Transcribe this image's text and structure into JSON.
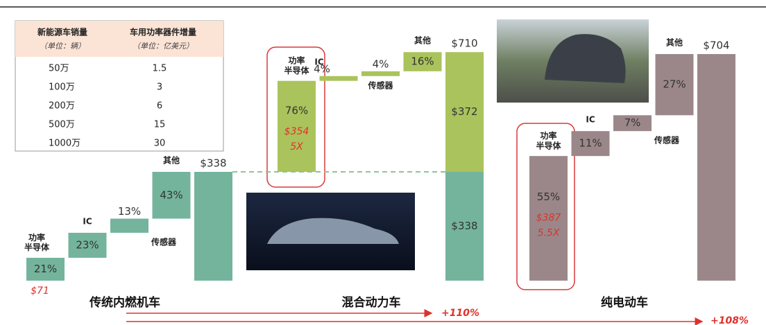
{
  "table": {
    "headers": [
      {
        "title": "新能源车销量",
        "unit": "（单位：辆）"
      },
      {
        "title": "车用功率器件增量",
        "unit": "（单位：亿美元）"
      }
    ],
    "rows": [
      [
        "50万",
        "1.5"
      ],
      [
        "100万",
        "3"
      ],
      [
        "200万",
        "6"
      ],
      [
        "500万",
        "15"
      ],
      [
        "1000万",
        "30"
      ]
    ]
  },
  "chart_data": {
    "type": "waterfall",
    "ylim": [
      0,
      760
    ],
    "groups": [
      {
        "name": "传统内燃机车",
        "color": "#74b49d",
        "categories": [
          "功率\n半导体",
          "IC",
          "传感器",
          "其他"
        ],
        "values": [
          21,
          23,
          13,
          43
        ],
        "value_labels": [
          "21%",
          "23%",
          "13%",
          "43%"
        ],
        "total": 338,
        "total_label": "$338",
        "highlight_label": "$71"
      },
      {
        "name": "混合动力车",
        "color": "#aac35c",
        "categories": [
          "功率\n半导体",
          "IC",
          "传感器",
          "其他"
        ],
        "values": [
          76,
          4,
          4,
          16
        ],
        "value_labels": [
          "76%",
          "4%",
          "4%",
          "16%"
        ],
        "base": 338,
        "base_label": "$338",
        "increment": 372,
        "increment_label": "$372",
        "total": 710,
        "total_label": "$710",
        "highlight_label": "$354",
        "multiple_label": "5X"
      },
      {
        "name": "纯电动车",
        "color": "#9b8789",
        "categories": [
          "功率\n半导体",
          "IC",
          "传感器",
          "其他"
        ],
        "values": [
          55,
          11,
          7,
          27
        ],
        "value_labels": [
          "55%",
          "11%",
          "7%",
          "27%"
        ],
        "total": 704,
        "total_label": "$704",
        "highlight_label": "$387",
        "multiple_label": "5.5X"
      }
    ],
    "growth_labels": [
      "+110%",
      "+108%"
    ]
  }
}
